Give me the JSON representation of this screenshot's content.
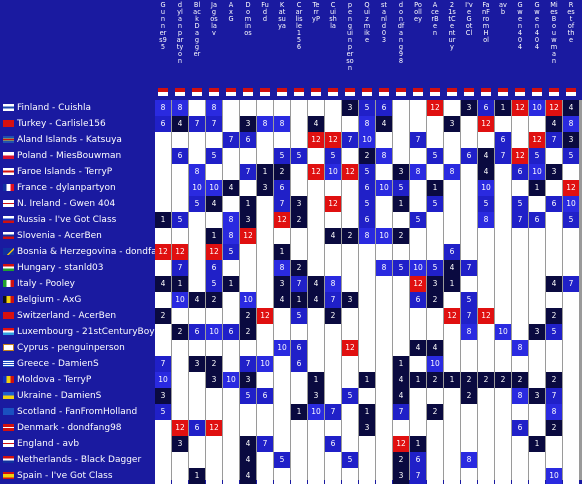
{
  "palette": {
    "background": "#1a1aa0",
    "cell_empty": "#ffffff",
    "grid_line": "#9a9a9a",
    "score_dark": "#0a0a40",
    "score_mid": "#2020c8",
    "score_high": "#2a2ae0",
    "score_max": "#e01010",
    "text": "#ffffff"
  },
  "columns": [
    {
      "label": "Gunners95",
      "flag": "flag-generic"
    },
    {
      "label": "dylanpartyon",
      "flag": "flag-generic"
    },
    {
      "label": "Black Dagger",
      "flag": "flag-generic"
    },
    {
      "label": "Jagoslav",
      "flag": "flag-generic"
    },
    {
      "label": "AxG",
      "flag": "flag-generic"
    },
    {
      "label": "Dominos",
      "flag": "flag-generic"
    },
    {
      "label": "Fudd",
      "flag": "flag-generic"
    },
    {
      "label": "Katsuya",
      "flag": "flag-generic"
    },
    {
      "label": "Carlisle156",
      "flag": "flag-generic"
    },
    {
      "label": "TerryP",
      "flag": "flag-generic"
    },
    {
      "label": "Cuishla",
      "flag": "flag-generic"
    },
    {
      "label": "penguinperson",
      "flag": "flag-generic"
    },
    {
      "label": "Quizmike",
      "flag": "flag-generic"
    },
    {
      "label": "stanld03",
      "flag": "flag-generic"
    },
    {
      "label": "dondfang98",
      "flag": "flag-generic"
    },
    {
      "label": "Poolley",
      "flag": "flag-generic"
    },
    {
      "label": "AcerBen",
      "flag": "flag-generic"
    },
    {
      "label": "21stCentury",
      "flag": "flag-generic"
    },
    {
      "label": "I've Got Cl",
      "flag": "flag-generic"
    },
    {
      "label": "FanFromHol",
      "flag": "flag-generic"
    },
    {
      "label": "avb",
      "flag": "flag-generic"
    },
    {
      "label": "Gwen 404",
      "flag": "flag-generic"
    },
    {
      "label": "Gwen404",
      "flag": "flag-generic"
    },
    {
      "label": "MiesBouwman",
      "flag": "flag-generic"
    },
    {
      "label": "Rest of the",
      "flag": "flag-generic"
    }
  ],
  "rows": [
    {
      "country": "Finland",
      "user": "Cuishla",
      "label": "Finland - Cuishla",
      "flag": "flag-finland",
      "scores": [
        "8",
        "8",
        "",
        "8",
        "",
        "",
        "",
        "",
        "",
        "",
        "",
        "3",
        "5",
        "6",
        "",
        "",
        "12",
        "",
        "3",
        "6",
        "1",
        "12",
        "10",
        "12",
        "4"
      ]
    },
    {
      "country": "Turkey",
      "user": "Carlisle156",
      "label": "Turkey - Carlisle156",
      "flag": "flag-turkey",
      "scores": [
        "6",
        "4",
        "7",
        "7",
        "",
        "3",
        "8",
        "8",
        "",
        "4",
        "",
        "",
        "8",
        "4",
        "",
        "",
        "",
        "3",
        "",
        "12",
        "",
        "",
        "",
        "4",
        "8"
      ]
    },
    {
      "country": "Aland Islands",
      "user": "Katsuya",
      "label": "Aland Islands - Katsuya",
      "flag": "flag-aland",
      "scores": [
        "",
        "",
        "",
        "",
        "7",
        "6",
        "",
        "",
        "",
        "12",
        "12",
        "7",
        "10",
        "",
        "",
        "7",
        "",
        "",
        "",
        "",
        "6",
        "",
        "12",
        "7",
        "3"
      ]
    },
    {
      "country": "Poland",
      "user": "MiesBouwman",
      "label": "Poland - MiesBouwman",
      "flag": "flag-poland",
      "scores": [
        "",
        "6",
        "",
        "5",
        "",
        "",
        "",
        "5",
        "5",
        "",
        "5",
        "",
        "2",
        "8",
        "",
        "",
        "5",
        "",
        "6",
        "4",
        "7",
        "12",
        "5",
        "",
        "5"
      ]
    },
    {
      "country": "Faroe Islands",
      "user": "TerryP",
      "label": "Faroe Islands - TerryP",
      "flag": "flag-faroe",
      "scores": [
        "",
        "",
        "8",
        "",
        "",
        "7",
        "1",
        "2",
        "",
        "12",
        "10",
        "12",
        "5",
        "",
        "3",
        "8",
        "",
        "8",
        "",
        "4",
        "",
        "6",
        "10",
        "3",
        ""
      ]
    },
    {
      "country": "France",
      "user": "dylanpartyon",
      "label": "France - dylanpartyon",
      "flag": "flag-france",
      "scores": [
        "",
        "",
        "10",
        "10",
        "4",
        "",
        "3",
        "6",
        "",
        "",
        "",
        "",
        "6",
        "10",
        "5",
        "",
        "1",
        "",
        "",
        "10",
        "",
        "",
        "1",
        "",
        "12"
      ]
    },
    {
      "country": "N. Ireland",
      "user": "Gwen 404",
      "label": "N. Ireland - Gwen 404",
      "flag": "flag-nireland",
      "scores": [
        "",
        "",
        "5",
        "4",
        "",
        "1",
        "",
        "7",
        "3",
        "",
        "12",
        "",
        "5",
        "",
        "1",
        "",
        "5",
        "",
        "",
        "5",
        "",
        "5",
        "",
        "6",
        "10"
      ]
    },
    {
      "country": "Russia",
      "user": "I've Got Class",
      "label": "Russia - I've Got Class",
      "flag": "flag-russia",
      "scores": [
        "1",
        "5",
        "",
        "",
        "8",
        "3",
        "",
        "12",
        "2",
        "",
        "",
        "",
        "6",
        "",
        "",
        "5",
        "",
        "",
        "",
        "8",
        "",
        "7",
        "6",
        "",
        "5"
      ]
    },
    {
      "country": "Slovenia",
      "user": "AcerBen",
      "label": "Slovenia - AcerBen",
      "flag": "flag-slovenia",
      "scores": [
        "",
        "",
        "",
        "1",
        "8",
        "12",
        "",
        "",
        "",
        "",
        "4",
        "2",
        "8",
        "10",
        "2",
        "",
        "",
        "",
        "",
        "",
        "",
        "",
        "",
        "",
        ""
      ]
    },
    {
      "country": "Bosnia & Herzegovina",
      "user": "dondfang98",
      "label": "Bosnia & Herzegovina - dondfang98",
      "flag": "flag-bosnia",
      "scores": [
        "12",
        "12",
        "",
        "12",
        "5",
        "",
        "",
        "1",
        "",
        "",
        "",
        "",
        "",
        "",
        "",
        "",
        "",
        "6",
        "",
        "",
        "",
        "",
        "",
        "",
        ""
      ]
    },
    {
      "country": "Hungary",
      "user": "stanld03",
      "label": "Hungary - stanld03",
      "flag": "flag-hungary",
      "scores": [
        "",
        "7",
        "",
        "6",
        "",
        "",
        "",
        "8",
        "2",
        "",
        "",
        "",
        "",
        "8",
        "5",
        "10",
        "5",
        "4",
        "7",
        "",
        "",
        "",
        "",
        "",
        ""
      ]
    },
    {
      "country": "Italy",
      "user": "Pooley",
      "label": "Italy - Pooley",
      "flag": "flag-italy",
      "scores": [
        "4",
        "1",
        "",
        "5",
        "1",
        "",
        "",
        "3",
        "7",
        "4",
        "8",
        "",
        "",
        "",
        "",
        "12",
        "3",
        "1",
        "",
        "",
        "",
        "",
        "",
        "4",
        "7"
      ]
    },
    {
      "country": "Belgium",
      "user": "AxG",
      "label": "Belgium - AxG",
      "flag": "flag-belgium",
      "scores": [
        "",
        "10",
        "4",
        "2",
        "",
        "10",
        "",
        "4",
        "1",
        "4",
        "7",
        "3",
        "",
        "",
        "",
        "6",
        "2",
        "",
        "5",
        "",
        "",
        "",
        "",
        "",
        ""
      ]
    },
    {
      "country": "Switzerland",
      "user": "AcerBen",
      "label": "Switzerland - AcerBen",
      "flag": "flag-switzerland",
      "scores": [
        "2",
        "",
        "",
        "",
        "",
        "2",
        "12",
        "",
        "5",
        "",
        "2",
        "",
        "",
        "",
        "",
        "",
        "",
        "12",
        "7",
        "12",
        "",
        "",
        "",
        "2",
        ""
      ]
    },
    {
      "country": "Luxembourg",
      "user": "21stCenturyBoy",
      "label": "Luxembourg - 21stCenturyBoy",
      "flag": "flag-luxembourg",
      "scores": [
        "",
        "2",
        "6",
        "10",
        "6",
        "2",
        "",
        "",
        "",
        "",
        "",
        "",
        "",
        "",
        "",
        "",
        "",
        "",
        "8",
        "",
        "10",
        "",
        "3",
        "5",
        ""
      ]
    },
    {
      "country": "Cyprus",
      "user": "penguinperson",
      "label": "Cyprus - penguinperson",
      "flag": "flag-cyprus",
      "scores": [
        "",
        "",
        "",
        "",
        "",
        "",
        "",
        "10",
        "6",
        "",
        "",
        "12",
        "",
        "",
        "",
        "4",
        "4",
        "",
        "",
        "",
        "",
        "8",
        "",
        "",
        ""
      ]
    },
    {
      "country": "Greece",
      "user": "DamienS",
      "label": "Greece - DamienS",
      "flag": "flag-greece",
      "scores": [
        "7",
        "",
        "3",
        "2",
        "",
        "7",
        "10",
        "",
        "6",
        "",
        "",
        "",
        "",
        "",
        "1",
        "",
        "10",
        "",
        "",
        "",
        "",
        "",
        "",
        "",
        ""
      ]
    },
    {
      "country": "Moldova",
      "user": "TerryP",
      "label": "Moldova - TerryP",
      "flag": "flag-moldova",
      "scores": [
        "10",
        "",
        "",
        "3",
        "10",
        "3",
        "",
        "",
        "",
        "1",
        "",
        "",
        "1",
        "",
        "4",
        "1",
        "2",
        "1",
        "2",
        "2",
        "2",
        "2",
        "",
        "2",
        ""
      ]
    },
    {
      "country": "Ukraine",
      "user": "DamienS",
      "label": "Ukraine - DamienS",
      "flag": "flag-ukraine",
      "scores": [
        "3",
        "",
        "",
        "",
        "",
        "5",
        "6",
        "",
        "",
        "3",
        "",
        "5",
        "",
        "",
        "4",
        "",
        "",
        "",
        "2",
        "",
        "",
        "8",
        "3",
        "7",
        ""
      ]
    },
    {
      "country": "Scotland",
      "user": "FanFromHolland",
      "label": "Scotland - FanFromHolland",
      "flag": "flag-scotland",
      "scores": [
        "5",
        "",
        "",
        "",
        "",
        "",
        "",
        "",
        "1",
        "10",
        "7",
        "",
        "1",
        "",
        "7",
        "",
        "2",
        "",
        "",
        "",
        "",
        "",
        "",
        "8",
        ""
      ]
    },
    {
      "country": "Denmark",
      "user": "dondfang98",
      "label": "Denmark - dondfang98",
      "flag": "flag-denmark",
      "scores": [
        "",
        "12",
        "6",
        "12",
        "",
        "",
        "",
        "",
        "",
        "",
        "",
        "",
        "3",
        "",
        "",
        "",
        "",
        "",
        "",
        "",
        "",
        "6",
        "",
        "2",
        ""
      ]
    },
    {
      "country": "England",
      "user": "avb",
      "label": "England - avb",
      "flag": "flag-england",
      "scores": [
        "",
        "3",
        "",
        "",
        "",
        "4",
        "7",
        "",
        "",
        "",
        "6",
        "",
        "",
        "",
        "12",
        "1",
        "",
        "",
        "",
        "",
        "",
        "",
        "1",
        "",
        ""
      ]
    },
    {
      "country": "Netherlands",
      "user": "Black Dagger",
      "label": "Netherlands - Black Dagger",
      "flag": "flag-netherlands",
      "scores": [
        "",
        "",
        "",
        "",
        "",
        "4",
        "",
        "5",
        "",
        "",
        "",
        "5",
        "",
        "",
        "2",
        "6",
        "",
        "",
        "8",
        "",
        "",
        "",
        "",
        "",
        ""
      ]
    },
    {
      "country": "Spain",
      "user": "I've Got Class",
      "label": "Spain - I've Got Class",
      "flag": "flag-spain",
      "scores": [
        "",
        "",
        "1",
        "",
        "",
        "4",
        "",
        "",
        "",
        "",
        "",
        "",
        "",
        "",
        "3",
        "7",
        "",
        "",
        "",
        "",
        "",
        "",
        "",
        "10",
        ""
      ]
    }
  ]
}
